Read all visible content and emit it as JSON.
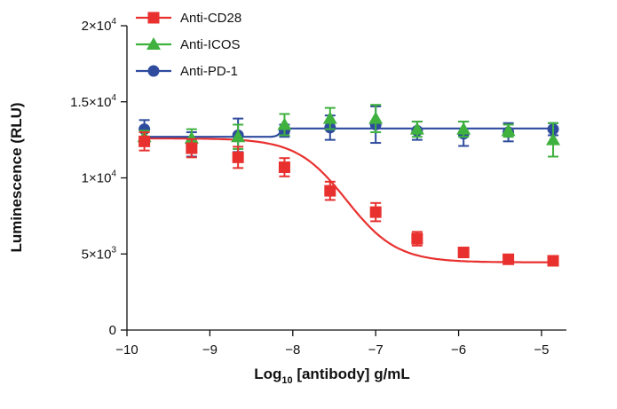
{
  "chart_data": {
    "type": "scatter",
    "xlabel": "Log10 [antibody] g/mL",
    "xlabel_main": "Log",
    "xlabel_sub": "10",
    "xlabel_rest": " [antibody] g/mL",
    "ylabel": "Luminescence (RLU)",
    "xlim": [
      -10,
      -4.7
    ],
    "ylim": [
      0,
      20000
    ],
    "x_ticks": [
      -10,
      -9,
      -8,
      -7,
      -6,
      -5
    ],
    "x_tick_labels": [
      "−10",
      "−9",
      "−8",
      "−7",
      "−6",
      "−5"
    ],
    "y_ticks": [
      0,
      5000,
      10000,
      15000,
      20000
    ],
    "y_tick_labels": [
      {
        "base": "0",
        "exp": ""
      },
      {
        "base": "5×10",
        "exp": "3"
      },
      {
        "base": "1×10",
        "exp": "4"
      },
      {
        "base": "1.5×10",
        "exp": "4"
      },
      {
        "base": "2×10",
        "exp": "4"
      }
    ],
    "grid": false,
    "legend_position": "top-left",
    "series": [
      {
        "name": "Anti-CD28",
        "color": "#e8312f",
        "marker": "square",
        "x": [
          -9.79,
          -9.22,
          -8.66,
          -8.1,
          -7.55,
          -7.0,
          -6.5,
          -5.94,
          -5.4,
          -4.86
        ],
        "y": [
          12400,
          11950,
          11350,
          10700,
          9150,
          7750,
          6000,
          5100,
          4650,
          4550
        ],
        "err": [
          600,
          600,
          700,
          600,
          600,
          600,
          450,
          300,
          200,
          200
        ],
        "fit": {
          "type": "4PL",
          "top": 12600,
          "bottom": 4450,
          "ec50_log": -7.35,
          "hill": 0.9
        }
      },
      {
        "name": "Anti-ICOS",
        "color": "#3fb13f",
        "marker": "triangle",
        "x": [
          -9.79,
          -9.22,
          -8.66,
          -8.1,
          -7.55,
          -7.0,
          -6.5,
          -5.94,
          -5.4,
          -4.86
        ],
        "y": [
          12700,
          12600,
          12700,
          13500,
          13900,
          13900,
          13200,
          13200,
          13100,
          12500
        ],
        "err": [
          400,
          600,
          800,
          700,
          700,
          900,
          500,
          500,
          400,
          1100
        ],
        "fit": null
      },
      {
        "name": "Anti-PD-1",
        "color": "#2e4b9e",
        "marker": "circle",
        "x": [
          -9.79,
          -9.22,
          -8.66,
          -8.1,
          -7.55,
          -7.0,
          -6.5,
          -5.94,
          -5.4,
          -4.86
        ],
        "y": [
          13200,
          12200,
          12800,
          13100,
          13300,
          13500,
          13100,
          12900,
          13000,
          13200
        ],
        "err": [
          600,
          800,
          1100,
          400,
          800,
          1200,
          600,
          800,
          600,
          400
        ],
        "fit": {
          "type": "step",
          "low": 12700,
          "high": 13250,
          "mid_log": -8.15
        }
      }
    ]
  }
}
